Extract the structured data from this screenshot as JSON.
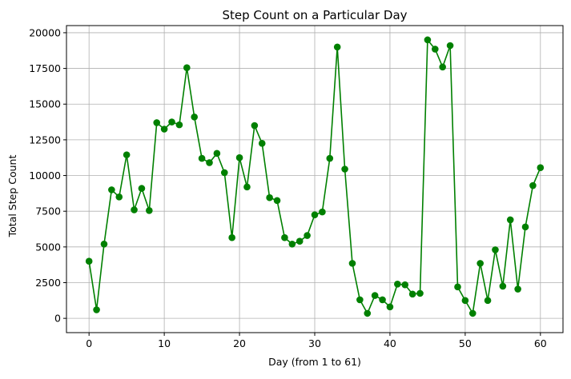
{
  "chart_data": {
    "type": "line",
    "title": "Step Count on a Particular Day",
    "xlabel": "Day (from 1 to 61)",
    "ylabel": "Total Step Count",
    "xlim": [
      -3,
      63
    ],
    "ylim": [
      -1000,
      20500
    ],
    "xticks": [
      0,
      10,
      20,
      30,
      40,
      50,
      60
    ],
    "xtick_labels": [
      "0",
      "10",
      "20",
      "30",
      "40",
      "50",
      "60"
    ],
    "yticks": [
      0,
      2500,
      5000,
      7500,
      10000,
      12500,
      15000,
      17500,
      20000
    ],
    "ytick_labels": [
      "0",
      "2500",
      "5000",
      "7500",
      "10000",
      "12500",
      "15000",
      "17500",
      "20000"
    ],
    "grid": true,
    "color": "#008000",
    "marker": "circle",
    "x": [
      0,
      1,
      2,
      3,
      4,
      5,
      6,
      7,
      8,
      9,
      10,
      11,
      12,
      13,
      14,
      15,
      16,
      17,
      18,
      19,
      20,
      21,
      22,
      23,
      24,
      25,
      26,
      27,
      28,
      29,
      30,
      31,
      32,
      33,
      34,
      35,
      36,
      37,
      38,
      39,
      40,
      41,
      42,
      43,
      44,
      45,
      46,
      47,
      48,
      49,
      50,
      51,
      52,
      53,
      54,
      55,
      56,
      57,
      58,
      59,
      60
    ],
    "values": [
      4000,
      600,
      5200,
      9000,
      8500,
      11450,
      7600,
      9100,
      7550,
      13700,
      13250,
      13750,
      13550,
      17550,
      14100,
      11200,
      10900,
      11550,
      10200,
      5650,
      11250,
      9200,
      13500,
      12250,
      8450,
      8250,
      5650,
      5200,
      5400,
      5800,
      7250,
      7450,
      11200,
      19000,
      10450,
      3850,
      1300,
      350,
      1600,
      1300,
      800,
      2400,
      2350,
      1700,
      1750,
      19500,
      18850,
      17600,
      19100,
      2200,
      1250,
      350,
      3850,
      1250,
      4800,
      2250,
      6900,
      2050,
      6400,
      9300,
      10550
    ]
  }
}
